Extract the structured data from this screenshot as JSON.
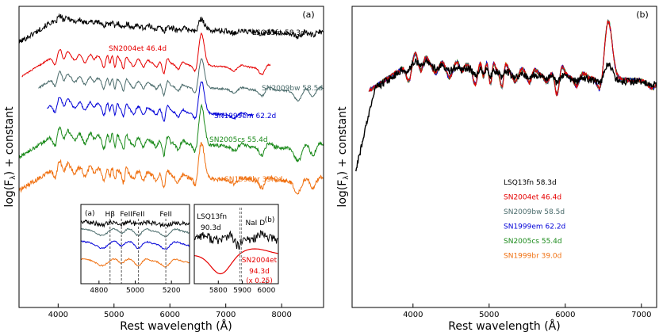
{
  "chart_data": [
    {
      "type": "line",
      "panel_label": "(a)",
      "xlabel": "Rest wavelength (Å)",
      "ylabel": "log(F",
      "ylabel_sub": "λ",
      "ylabel_tail": ") + constant",
      "xlim": [
        3300,
        8750
      ],
      "xticks": [
        4000,
        5000,
        6000,
        7000,
        8000
      ],
      "series": [
        {
          "name": "LSQ13fn 58.3d",
          "color": "#000000",
          "range": [
            3300,
            8750
          ],
          "offset": 0.0
        },
        {
          "name": "SN2004et 46.4d",
          "color": "#e60000",
          "range": [
            3350,
            7800
          ],
          "offset": 1.0
        },
        {
          "name": "SN2009bw 58.5d",
          "color": "#4a6b6b",
          "range": [
            3650,
            8750
          ],
          "offset": 1.9
        },
        {
          "name": "SN1999em 62.2d",
          "color": "#0000d8",
          "range": [
            3800,
            7500
          ],
          "offset": 2.8
        },
        {
          "name": "SN2005cs 55.4d",
          "color": "#1a8a1a",
          "range": [
            3300,
            8750
          ],
          "offset": 3.6
        },
        {
          "name": "SN1999br 39.0d",
          "color": "#f07010",
          "range": [
            3300,
            8750
          ],
          "offset": 4.5
        }
      ],
      "insets": [
        {
          "label": "(a)",
          "xlim": [
            4700,
            5300
          ],
          "xticks": [
            4800,
            5000,
            5200
          ],
          "line_ids": [
            {
              "text": "Hβ",
              "x": 4861
            },
            {
              "text": "FeII",
              "x": 4924
            },
            {
              "text": "FeII",
              "x": 5018
            },
            {
              "text": "FeII",
              "x": 5169
            }
          ]
        },
        {
          "label": "(b)",
          "xlim": [
            5700,
            6050
          ],
          "xticks": [
            5800,
            5900,
            6000
          ],
          "line_ids": [
            {
              "text": "NaI D",
              "x": 5893
            }
          ],
          "annotations": [
            "LSQ13fn",
            "90.3d",
            "SN2004et",
            "94.3d",
            "(x 0.25)"
          ]
        }
      ]
    },
    {
      "type": "line",
      "panel_label": "(b)",
      "xlabel": "Rest wavelength (Å)",
      "ylabel": "log(F",
      "ylabel_sub": "λ",
      "ylabel_tail": ") + constant",
      "xlim": [
        3200,
        7200
      ],
      "xticks": [
        4000,
        5000,
        6000,
        7000
      ],
      "legend": [
        {
          "name": "LSQ13fn 58.3d",
          "color": "#000000"
        },
        {
          "name": "SN2004et 46.4d",
          "color": "#e60000"
        },
        {
          "name": "SN2009bw 58.5d",
          "color": "#4a6b6b"
        },
        {
          "name": "SN1999em 62.2d",
          "color": "#0000d8"
        },
        {
          "name": "SN2005cs 55.4d",
          "color": "#1a8a1a"
        },
        {
          "name": "SN1999br 39.0d",
          "color": "#f07010"
        }
      ]
    }
  ]
}
